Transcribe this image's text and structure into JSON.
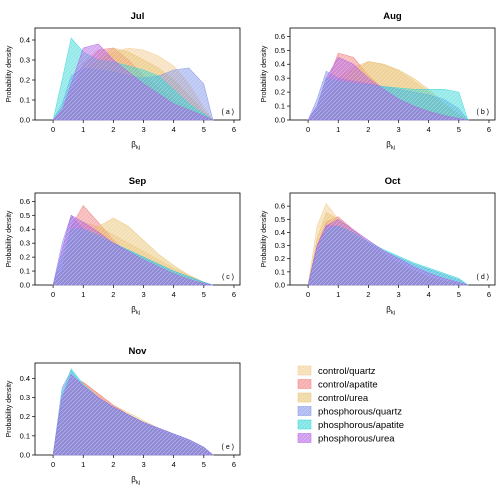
{
  "legend": {
    "position": "bottom-right",
    "items": [
      {
        "label": "control/quartz",
        "color": "#F2C98A"
      },
      {
        "label": "control/apatite",
        "color": "#F07A7A"
      },
      {
        "label": "control/urea",
        "color": "#E8C170"
      },
      {
        "label": "phosphorous/quartz",
        "color": "#7C8FE8"
      },
      {
        "label": "phosphorous/apatite",
        "color": "#30D5D5"
      },
      {
        "label": "phosphorous/urea",
        "color": "#B05CE6"
      }
    ]
  },
  "chart_data": [
    {
      "type": "area",
      "title": "Jul",
      "panel_label": "( a )",
      "xlabel": "β",
      "xlabel_sub": "kj",
      "ylabel": "Probability density",
      "xlim": [
        -0.6,
        6.2
      ],
      "ylim": [
        0,
        0.46
      ],
      "xticks": [
        "0",
        "1",
        "2",
        "3",
        "4",
        "5",
        "6"
      ],
      "yticks": [
        "0.0",
        "0.1",
        "0.2",
        "0.3",
        "0.4"
      ],
      "x": [
        0,
        0.3,
        0.6,
        1.0,
        1.5,
        2.0,
        2.5,
        3.0,
        3.5,
        4.0,
        4.5,
        5.0,
        5.3
      ],
      "series": [
        {
          "name": "control/quartz",
          "values": [
            0.0,
            0.05,
            0.15,
            0.24,
            0.3,
            0.34,
            0.36,
            0.35,
            0.32,
            0.27,
            0.18,
            0.06,
            0.0
          ]
        },
        {
          "name": "control/apatite",
          "values": [
            0.0,
            0.04,
            0.15,
            0.28,
            0.35,
            0.36,
            0.3,
            0.22,
            0.16,
            0.1,
            0.06,
            0.02,
            0.0
          ]
        },
        {
          "name": "control/urea",
          "values": [
            0.0,
            0.03,
            0.1,
            0.2,
            0.3,
            0.36,
            0.34,
            0.3,
            0.26,
            0.2,
            0.12,
            0.04,
            0.0
          ]
        },
        {
          "name": "phosphorous/quartz",
          "values": [
            0.0,
            0.08,
            0.22,
            0.26,
            0.25,
            0.24,
            0.22,
            0.21,
            0.22,
            0.25,
            0.26,
            0.18,
            0.0
          ]
        },
        {
          "name": "phosphorous/apatite",
          "values": [
            0.0,
            0.2,
            0.41,
            0.34,
            0.3,
            0.29,
            0.27,
            0.25,
            0.22,
            0.15,
            0.08,
            0.03,
            0.0
          ]
        },
        {
          "name": "phosphorous/urea",
          "values": [
            0.0,
            0.05,
            0.18,
            0.36,
            0.38,
            0.3,
            0.24,
            0.18,
            0.13,
            0.08,
            0.05,
            0.02,
            0.0
          ]
        }
      ]
    },
    {
      "type": "area",
      "title": "Aug",
      "panel_label": "( b )",
      "xlabel": "β",
      "xlabel_sub": "kj",
      "ylabel": "Probability density",
      "xlim": [
        -0.6,
        6.2
      ],
      "ylim": [
        0,
        0.66
      ],
      "xticks": [
        "0",
        "1",
        "2",
        "3",
        "4",
        "5",
        "6"
      ],
      "yticks": [
        "0.0",
        "0.1",
        "0.2",
        "0.3",
        "0.4",
        "0.5",
        "0.6"
      ],
      "x": [
        0,
        0.3,
        0.6,
        1.0,
        1.5,
        2.0,
        2.5,
        3.0,
        3.5,
        4.0,
        4.5,
        5.0,
        5.3
      ],
      "series": [
        {
          "name": "control/quartz",
          "values": [
            0.0,
            0.04,
            0.15,
            0.3,
            0.38,
            0.42,
            0.4,
            0.35,
            0.28,
            0.2,
            0.11,
            0.04,
            0.0
          ]
        },
        {
          "name": "control/apatite",
          "values": [
            0.0,
            0.07,
            0.25,
            0.48,
            0.45,
            0.32,
            0.22,
            0.15,
            0.1,
            0.07,
            0.04,
            0.01,
            0.0
          ]
        },
        {
          "name": "control/urea",
          "values": [
            0.0,
            0.03,
            0.1,
            0.22,
            0.35,
            0.42,
            0.4,
            0.36,
            0.3,
            0.22,
            0.12,
            0.04,
            0.0
          ]
        },
        {
          "name": "phosphorous/quartz",
          "values": [
            0.0,
            0.15,
            0.35,
            0.3,
            0.28,
            0.26,
            0.24,
            0.22,
            0.2,
            0.18,
            0.15,
            0.08,
            0.0
          ]
        },
        {
          "name": "phosphorous/apatite",
          "values": [
            0.0,
            0.1,
            0.3,
            0.28,
            0.26,
            0.25,
            0.24,
            0.23,
            0.22,
            0.22,
            0.22,
            0.2,
            0.0
          ]
        },
        {
          "name": "phosphorous/urea",
          "values": [
            0.0,
            0.1,
            0.3,
            0.45,
            0.4,
            0.3,
            0.22,
            0.15,
            0.1,
            0.06,
            0.03,
            0.01,
            0.0
          ]
        }
      ]
    },
    {
      "type": "area",
      "title": "Sep",
      "panel_label": "( c )",
      "xlabel": "β",
      "xlabel_sub": "kj",
      "ylabel": "Probability density",
      "xlim": [
        -0.6,
        6.2
      ],
      "ylim": [
        0,
        0.66
      ],
      "xticks": [
        "0",
        "1",
        "2",
        "3",
        "4",
        "5",
        "6"
      ],
      "yticks": [
        "0.0",
        "0.1",
        "0.2",
        "0.3",
        "0.4",
        "0.5",
        "0.6"
      ],
      "x": [
        0,
        0.3,
        0.6,
        1.0,
        1.5,
        2.0,
        2.5,
        3.0,
        3.5,
        4.0,
        4.5,
        5.0,
        5.3
      ],
      "series": [
        {
          "name": "control/quartz",
          "values": [
            0.0,
            0.08,
            0.3,
            0.45,
            0.42,
            0.36,
            0.3,
            0.24,
            0.18,
            0.12,
            0.07,
            0.02,
            0.0
          ]
        },
        {
          "name": "control/apatite",
          "values": [
            0.0,
            0.12,
            0.42,
            0.57,
            0.45,
            0.32,
            0.22,
            0.15,
            0.1,
            0.06,
            0.03,
            0.01,
            0.0
          ]
        },
        {
          "name": "control/urea",
          "values": [
            0.0,
            0.05,
            0.2,
            0.35,
            0.42,
            0.48,
            0.42,
            0.32,
            0.22,
            0.14,
            0.07,
            0.02,
            0.0
          ]
        },
        {
          "name": "phosphorous/quartz",
          "values": [
            0.0,
            0.3,
            0.5,
            0.4,
            0.34,
            0.3,
            0.25,
            0.2,
            0.15,
            0.1,
            0.06,
            0.02,
            0.0
          ]
        },
        {
          "name": "phosphorous/apatite",
          "values": [
            0.0,
            0.2,
            0.4,
            0.4,
            0.36,
            0.3,
            0.25,
            0.2,
            0.15,
            0.1,
            0.06,
            0.02,
            0.0
          ]
        },
        {
          "name": "phosphorous/urea",
          "values": [
            0.0,
            0.25,
            0.5,
            0.45,
            0.38,
            0.3,
            0.24,
            0.18,
            0.13,
            0.08,
            0.04,
            0.01,
            0.0
          ]
        }
      ]
    },
    {
      "type": "area",
      "title": "Oct",
      "panel_label": "( d )",
      "xlabel": "β",
      "xlabel_sub": "kj",
      "ylabel": "Probability density",
      "xlim": [
        -0.6,
        6.2
      ],
      "ylim": [
        0,
        0.7
      ],
      "xticks": [
        "0",
        "1",
        "2",
        "3",
        "4",
        "5",
        "6"
      ],
      "yticks": [
        "0.0",
        "0.1",
        "0.2",
        "0.3",
        "0.4",
        "0.5",
        "0.6"
      ],
      "x": [
        0,
        0.3,
        0.6,
        1.0,
        1.5,
        2.0,
        2.5,
        3.0,
        3.5,
        4.0,
        4.5,
        5.0,
        5.3
      ],
      "series": [
        {
          "name": "control/quartz",
          "values": [
            0.0,
            0.45,
            0.62,
            0.5,
            0.38,
            0.28,
            0.2,
            0.14,
            0.09,
            0.05,
            0.03,
            0.01,
            0.0
          ]
        },
        {
          "name": "control/apatite",
          "values": [
            0.0,
            0.3,
            0.48,
            0.52,
            0.42,
            0.32,
            0.24,
            0.17,
            0.11,
            0.06,
            0.03,
            0.01,
            0.0
          ]
        },
        {
          "name": "control/urea",
          "values": [
            0.0,
            0.35,
            0.55,
            0.5,
            0.4,
            0.3,
            0.22,
            0.15,
            0.1,
            0.06,
            0.03,
            0.01,
            0.0
          ]
        },
        {
          "name": "phosphorous/quartz",
          "values": [
            0.0,
            0.3,
            0.45,
            0.45,
            0.38,
            0.32,
            0.26,
            0.21,
            0.16,
            0.12,
            0.08,
            0.04,
            0.0
          ]
        },
        {
          "name": "phosphorous/apatite",
          "values": [
            0.0,
            0.25,
            0.42,
            0.45,
            0.4,
            0.33,
            0.27,
            0.22,
            0.17,
            0.13,
            0.09,
            0.05,
            0.0
          ]
        },
        {
          "name": "phosphorous/urea",
          "values": [
            0.0,
            0.3,
            0.45,
            0.5,
            0.42,
            0.34,
            0.26,
            0.2,
            0.14,
            0.09,
            0.05,
            0.02,
            0.0
          ]
        }
      ]
    },
    {
      "type": "area",
      "title": "Nov",
      "panel_label": "( e )",
      "xlabel": "β",
      "xlabel_sub": "kj",
      "ylabel": "Probability density",
      "xlim": [
        -0.6,
        6.2
      ],
      "ylim": [
        0,
        0.48
      ],
      "xticks": [
        "0",
        "1",
        "2",
        "3",
        "4",
        "5",
        "6"
      ],
      "yticks": [
        "0.0",
        "0.1",
        "0.2",
        "0.3",
        "0.4"
      ],
      "x": [
        0,
        0.3,
        0.6,
        1.0,
        1.5,
        2.0,
        2.5,
        3.0,
        3.5,
        4.0,
        4.5,
        5.0,
        5.3
      ],
      "series": [
        {
          "name": "control/quartz",
          "values": [
            0.0,
            0.25,
            0.38,
            0.38,
            0.32,
            0.26,
            0.22,
            0.18,
            0.14,
            0.1,
            0.07,
            0.03,
            0.0
          ]
        },
        {
          "name": "control/apatite",
          "values": [
            0.0,
            0.28,
            0.4,
            0.38,
            0.32,
            0.26,
            0.21,
            0.17,
            0.13,
            0.1,
            0.07,
            0.03,
            0.0
          ]
        },
        {
          "name": "control/urea",
          "values": [
            0.0,
            0.22,
            0.35,
            0.36,
            0.3,
            0.25,
            0.21,
            0.17,
            0.13,
            0.1,
            0.07,
            0.03,
            0.0
          ]
        },
        {
          "name": "phosphorous/quartz",
          "values": [
            0.0,
            0.35,
            0.44,
            0.36,
            0.3,
            0.25,
            0.21,
            0.17,
            0.14,
            0.11,
            0.08,
            0.04,
            0.0
          ]
        },
        {
          "name": "phosphorous/apatite",
          "values": [
            0.0,
            0.32,
            0.45,
            0.37,
            0.3,
            0.25,
            0.21,
            0.17,
            0.14,
            0.11,
            0.08,
            0.04,
            0.0
          ]
        },
        {
          "name": "phosphorous/urea",
          "values": [
            0.0,
            0.3,
            0.42,
            0.36,
            0.3,
            0.25,
            0.21,
            0.17,
            0.14,
            0.11,
            0.08,
            0.04,
            0.0
          ]
        }
      ]
    }
  ]
}
